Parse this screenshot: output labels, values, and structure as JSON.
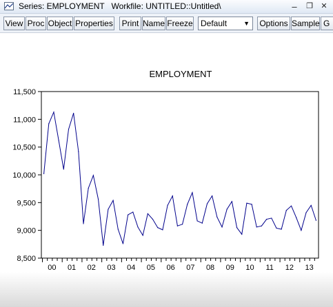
{
  "window": {
    "title": "Series: EMPLOYMENT   Workfile: UNTITLED::Untitled\\",
    "minimize_glyph": "–",
    "restore_glyph": "❐",
    "close_glyph": "✕"
  },
  "toolbar": {
    "buttons": [
      "View",
      "Proc",
      "Object",
      "Properties",
      "Print",
      "Name",
      "Freeze",
      "Options",
      "Sample",
      "G"
    ],
    "dropdown_value": "Default"
  },
  "chart_data": {
    "type": "line",
    "title": "EMPLOYMENT",
    "xlabel": "",
    "ylabel": "",
    "ylim": [
      8500,
      11500
    ],
    "yticks": [
      8500,
      9000,
      9500,
      10000,
      10500,
      11000,
      11500
    ],
    "ytick_labels": [
      "8,500",
      "9,000",
      "9,500",
      "10,000",
      "10,500",
      "11,000",
      "11,500"
    ],
    "xtick_labels": [
      "00",
      "01",
      "02",
      "03",
      "04",
      "05",
      "06",
      "07",
      "08",
      "09",
      "10",
      "11",
      "12",
      "13"
    ],
    "periods_per_label": 4,
    "series": [
      {
        "color": "#00008b",
        "values": [
          10020,
          10920,
          11130,
          10620,
          10100,
          10820,
          11110,
          10420,
          9120,
          9760,
          9990,
          9560,
          8730,
          9380,
          9540,
          9020,
          8760,
          9280,
          9330,
          9060,
          8910,
          9300,
          9200,
          9050,
          9010,
          9450,
          9620,
          9080,
          9110,
          9470,
          9680,
          9170,
          9130,
          9480,
          9620,
          9240,
          9060,
          9380,
          9520,
          9050,
          8930,
          9490,
          9470,
          9060,
          9080,
          9200,
          9220,
          9040,
          9020,
          9360,
          9440,
          9230,
          9000,
          9320,
          9450,
          9180
        ]
      }
    ]
  }
}
